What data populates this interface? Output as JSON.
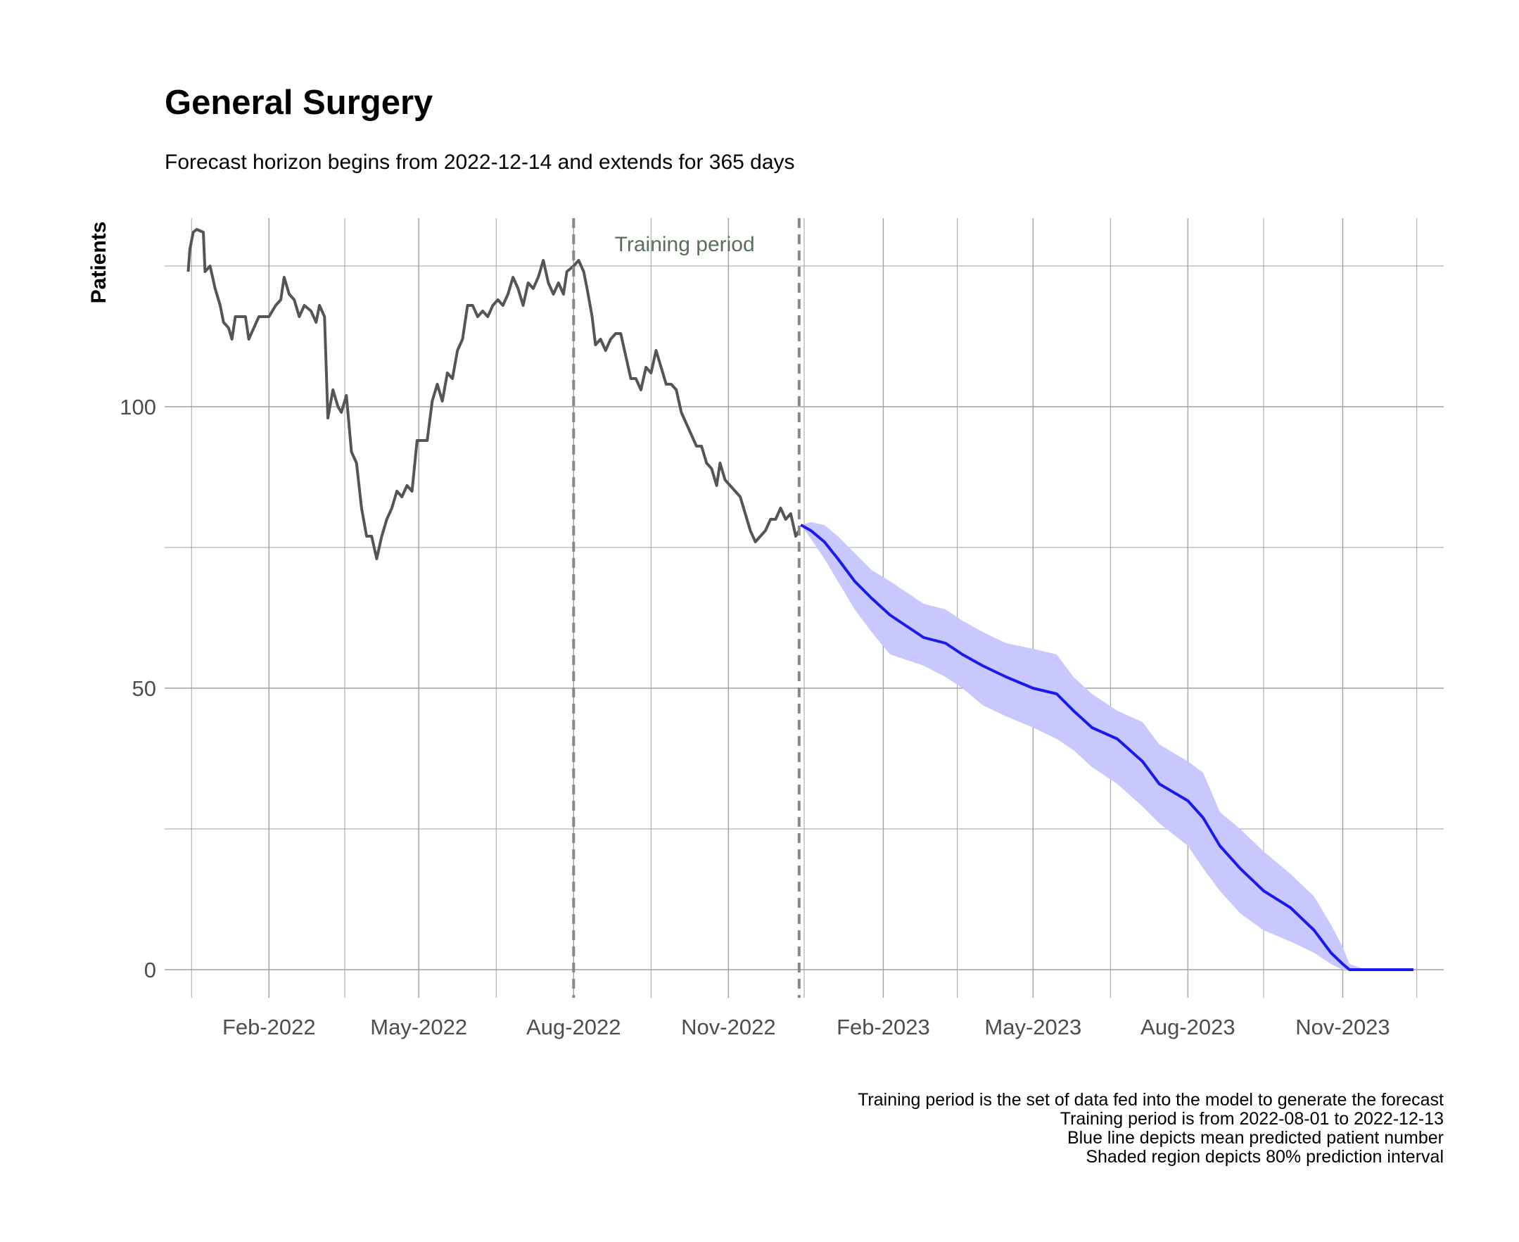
{
  "chart_data": {
    "type": "line",
    "title": "General Surgery",
    "subtitle": "Forecast horizon begins from 2022-12-14 and extends for 365 days",
    "xlabel": "",
    "ylabel": "Patients",
    "x_range": [
      "2021-12-01",
      "2023-12-31"
    ],
    "ylim": [
      -5,
      133.5
    ],
    "y_ticks": [
      0,
      50,
      100
    ],
    "y_minor_ticks": [
      25,
      75,
      125
    ],
    "x_ticks": [
      {
        "date": "2022-02-01",
        "label": "Feb-2022"
      },
      {
        "date": "2022-05-01",
        "label": "May-2022"
      },
      {
        "date": "2022-08-01",
        "label": "Aug-2022"
      },
      {
        "date": "2022-11-01",
        "label": "Nov-2022"
      },
      {
        "date": "2023-02-01",
        "label": "Feb-2023"
      },
      {
        "date": "2023-05-01",
        "label": "May-2023"
      },
      {
        "date": "2023-08-01",
        "label": "Aug-2023"
      },
      {
        "date": "2023-11-01",
        "label": "Nov-2023"
      }
    ],
    "x_minor_ticks": [
      "2021-12-17",
      "2022-03-18",
      "2022-06-16",
      "2022-09-16",
      "2022-12-16",
      "2023-03-17",
      "2023-06-16",
      "2023-09-15",
      "2023-12-15"
    ],
    "grid": true,
    "vlines": [
      {
        "date": "2022-08-01",
        "style": "dashed"
      },
      {
        "date": "2022-12-13",
        "style": "dashed"
      }
    ],
    "annotation": {
      "text": "Training period",
      "date": "2022-10-06",
      "y": 129
    },
    "colors": {
      "observed": "#555555",
      "forecast": "#1a1aee",
      "interval": "#c8c8ff",
      "vline": "#888888",
      "grid": "#a0a0a0"
    },
    "series": [
      {
        "role": "observed",
        "points": [
          [
            "2021-12-15",
            124
          ],
          [
            "2021-12-16",
            128
          ],
          [
            "2021-12-18",
            131
          ],
          [
            "2021-12-20",
            131.5
          ],
          [
            "2021-12-24",
            131
          ],
          [
            "2021-12-25",
            124
          ],
          [
            "2021-12-28",
            125
          ],
          [
            "2021-12-31",
            121
          ],
          [
            "2022-01-03",
            118
          ],
          [
            "2022-01-05",
            115
          ],
          [
            "2022-01-08",
            114
          ],
          [
            "2022-01-10",
            112
          ],
          [
            "2022-01-12",
            116
          ],
          [
            "2022-01-18",
            116
          ],
          [
            "2022-01-20",
            112
          ],
          [
            "2022-01-23",
            114
          ],
          [
            "2022-01-26",
            116
          ],
          [
            "2022-02-01",
            116
          ],
          [
            "2022-02-05",
            118
          ],
          [
            "2022-02-08",
            119
          ],
          [
            "2022-02-10",
            123
          ],
          [
            "2022-02-13",
            120
          ],
          [
            "2022-02-16",
            119
          ],
          [
            "2022-02-19",
            116
          ],
          [
            "2022-02-22",
            118
          ],
          [
            "2022-02-26",
            117
          ],
          [
            "2022-03-01",
            115
          ],
          [
            "2022-03-03",
            118
          ],
          [
            "2022-03-06",
            116
          ],
          [
            "2022-03-08",
            98
          ],
          [
            "2022-03-11",
            103
          ],
          [
            "2022-03-14",
            100
          ],
          [
            "2022-03-16",
            99
          ],
          [
            "2022-03-19",
            102
          ],
          [
            "2022-03-22",
            92
          ],
          [
            "2022-03-25",
            90
          ],
          [
            "2022-03-28",
            82
          ],
          [
            "2022-03-31",
            77
          ],
          [
            "2022-04-03",
            77
          ],
          [
            "2022-04-06",
            73
          ],
          [
            "2022-04-09",
            77
          ],
          [
            "2022-04-12",
            80
          ],
          [
            "2022-04-15",
            82
          ],
          [
            "2022-04-18",
            85
          ],
          [
            "2022-04-21",
            84
          ],
          [
            "2022-04-24",
            86
          ],
          [
            "2022-04-27",
            85
          ],
          [
            "2022-04-30",
            94
          ],
          [
            "2022-05-03",
            94
          ],
          [
            "2022-05-06",
            94
          ],
          [
            "2022-05-09",
            101
          ],
          [
            "2022-05-12",
            104
          ],
          [
            "2022-05-15",
            101
          ],
          [
            "2022-05-18",
            106
          ],
          [
            "2022-05-21",
            105
          ],
          [
            "2022-05-24",
            110
          ],
          [
            "2022-05-27",
            112
          ],
          [
            "2022-05-30",
            118
          ],
          [
            "2022-06-02",
            118
          ],
          [
            "2022-06-05",
            116
          ],
          [
            "2022-06-08",
            117
          ],
          [
            "2022-06-11",
            116
          ],
          [
            "2022-06-14",
            118
          ],
          [
            "2022-06-17",
            119
          ],
          [
            "2022-06-20",
            118
          ],
          [
            "2022-06-23",
            120
          ],
          [
            "2022-06-26",
            123
          ],
          [
            "2022-06-29",
            121
          ],
          [
            "2022-07-02",
            118
          ],
          [
            "2022-07-05",
            122
          ],
          [
            "2022-07-08",
            121
          ],
          [
            "2022-07-11",
            123
          ],
          [
            "2022-07-14",
            126
          ],
          [
            "2022-07-17",
            122
          ],
          [
            "2022-07-20",
            120
          ],
          [
            "2022-07-23",
            122
          ],
          [
            "2022-07-26",
            120
          ],
          [
            "2022-07-28",
            124
          ],
          [
            "2022-08-01",
            125
          ],
          [
            "2022-08-04",
            126
          ],
          [
            "2022-08-07",
            124
          ],
          [
            "2022-08-09",
            121
          ],
          [
            "2022-08-12",
            116
          ],
          [
            "2022-08-14",
            111
          ],
          [
            "2022-08-17",
            112
          ],
          [
            "2022-08-20",
            110
          ],
          [
            "2022-08-23",
            112
          ],
          [
            "2022-08-26",
            113
          ],
          [
            "2022-08-29",
            113
          ],
          [
            "2022-09-01",
            109
          ],
          [
            "2022-09-04",
            105
          ],
          [
            "2022-09-07",
            105
          ],
          [
            "2022-09-10",
            103
          ],
          [
            "2022-09-13",
            107
          ],
          [
            "2022-09-16",
            106
          ],
          [
            "2022-09-19",
            110
          ],
          [
            "2022-09-22",
            107
          ],
          [
            "2022-09-25",
            104
          ],
          [
            "2022-09-28",
            104
          ],
          [
            "2022-10-01",
            103
          ],
          [
            "2022-10-04",
            99
          ],
          [
            "2022-10-07",
            97
          ],
          [
            "2022-10-10",
            95
          ],
          [
            "2022-10-13",
            93
          ],
          [
            "2022-10-16",
            93
          ],
          [
            "2022-10-19",
            90
          ],
          [
            "2022-10-22",
            89
          ],
          [
            "2022-10-25",
            86
          ],
          [
            "2022-10-27",
            90
          ],
          [
            "2022-10-30",
            87
          ],
          [
            "2022-11-02",
            86
          ],
          [
            "2022-11-05",
            85
          ],
          [
            "2022-11-08",
            84
          ],
          [
            "2022-11-11",
            81
          ],
          [
            "2022-11-14",
            78
          ],
          [
            "2022-11-17",
            76
          ],
          [
            "2022-11-20",
            77
          ],
          [
            "2022-11-23",
            78
          ],
          [
            "2022-11-26",
            80
          ],
          [
            "2022-11-29",
            80
          ],
          [
            "2022-12-02",
            82
          ],
          [
            "2022-12-05",
            80
          ],
          [
            "2022-12-08",
            81
          ],
          [
            "2022-12-11",
            77
          ],
          [
            "2022-12-13",
            78
          ]
        ]
      },
      {
        "role": "forecast-mean",
        "name": "Blue line depicts mean predicted patient number",
        "points": [
          [
            "2022-12-14",
            79
          ],
          [
            "2022-12-20",
            78
          ],
          [
            "2022-12-28",
            76
          ],
          [
            "2023-01-05",
            73
          ],
          [
            "2023-01-15",
            69
          ],
          [
            "2023-01-25",
            66
          ],
          [
            "2023-02-05",
            63
          ],
          [
            "2023-02-15",
            61
          ],
          [
            "2023-02-25",
            59
          ],
          [
            "2023-03-10",
            58
          ],
          [
            "2023-03-20",
            56
          ],
          [
            "2023-04-01",
            54
          ],
          [
            "2023-04-15",
            52
          ],
          [
            "2023-05-01",
            50
          ],
          [
            "2023-05-15",
            49
          ],
          [
            "2023-05-25",
            46
          ],
          [
            "2023-06-05",
            43
          ],
          [
            "2023-06-20",
            41
          ],
          [
            "2023-07-05",
            37
          ],
          [
            "2023-07-15",
            33
          ],
          [
            "2023-08-01",
            30
          ],
          [
            "2023-08-10",
            27
          ],
          [
            "2023-08-20",
            22
          ],
          [
            "2023-09-01",
            18
          ],
          [
            "2023-09-15",
            14
          ],
          [
            "2023-10-01",
            11
          ],
          [
            "2023-10-15",
            7
          ],
          [
            "2023-10-25",
            3
          ],
          [
            "2023-11-01",
            1
          ],
          [
            "2023-11-05",
            0
          ],
          [
            "2023-11-15",
            0
          ],
          [
            "2023-12-13",
            0
          ]
        ]
      },
      {
        "role": "interval",
        "name": "Shaded region depicts 80% prediction interval",
        "points": [
          [
            "2022-12-14",
            79,
            79
          ],
          [
            "2022-12-20",
            79.5,
            76.5
          ],
          [
            "2022-12-28",
            79,
            73
          ],
          [
            "2023-01-05",
            77,
            69
          ],
          [
            "2023-01-15",
            74,
            64
          ],
          [
            "2023-01-25",
            71,
            60
          ],
          [
            "2023-02-05",
            69,
            56
          ],
          [
            "2023-02-15",
            67,
            55
          ],
          [
            "2023-02-25",
            65,
            54
          ],
          [
            "2023-03-10",
            64,
            52
          ],
          [
            "2023-03-20",
            62,
            50
          ],
          [
            "2023-04-01",
            60,
            47
          ],
          [
            "2023-04-15",
            58,
            45
          ],
          [
            "2023-05-01",
            57,
            43
          ],
          [
            "2023-05-15",
            56,
            41
          ],
          [
            "2023-05-25",
            52,
            39
          ],
          [
            "2023-06-05",
            49,
            36
          ],
          [
            "2023-06-20",
            46,
            33
          ],
          [
            "2023-07-05",
            44,
            29
          ],
          [
            "2023-07-15",
            40,
            26
          ],
          [
            "2023-08-01",
            37,
            22
          ],
          [
            "2023-08-10",
            35,
            18
          ],
          [
            "2023-08-20",
            28,
            14
          ],
          [
            "2023-09-01",
            25,
            10
          ],
          [
            "2023-09-15",
            21,
            7
          ],
          [
            "2023-10-01",
            17,
            5
          ],
          [
            "2023-10-15",
            13,
            3
          ],
          [
            "2023-10-25",
            8,
            1
          ],
          [
            "2023-11-01",
            4,
            0
          ],
          [
            "2023-11-05",
            1,
            0
          ],
          [
            "2023-11-15",
            0,
            0
          ],
          [
            "2023-12-13",
            0,
            0
          ]
        ]
      }
    ]
  },
  "captions": [
    "Training period is the set of data fed into the model to generate the forecast",
    "Training period is from 2022-08-01 to 2022-12-13",
    "Blue line depicts mean predicted patient number",
    "Shaded region depicts 80% prediction interval"
  ]
}
